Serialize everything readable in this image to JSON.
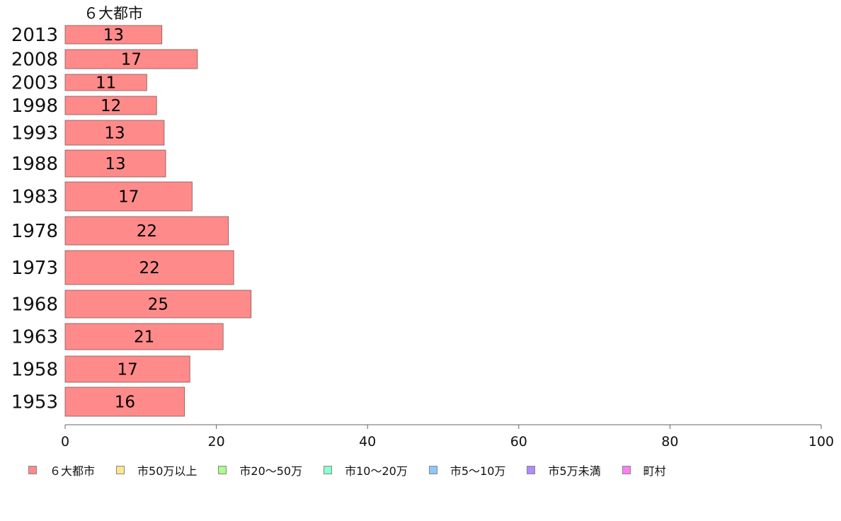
{
  "chart_data": {
    "type": "bar",
    "orientation": "horizontal",
    "series_label": "６大都市",
    "categories": [
      "2013",
      "2008",
      "2003",
      "1998",
      "1993",
      "1988",
      "1983",
      "1978",
      "1973",
      "1968",
      "1963",
      "1958",
      "1953"
    ],
    "values": [
      12.8,
      17.5,
      10.8,
      12.1,
      13.1,
      13.3,
      16.8,
      21.6,
      22.3,
      24.6,
      20.9,
      16.5,
      15.8
    ],
    "value_labels": [
      "13",
      "17",
      "11",
      "12",
      "13",
      "13",
      "17",
      "22",
      "22",
      "25",
      "21",
      "17",
      "16"
    ],
    "xlim": [
      0,
      100
    ],
    "xticks": [
      0,
      20,
      40,
      60,
      80,
      100
    ],
    "grid": false,
    "legend_position": "bottom",
    "legend": [
      {
        "label": "６大都市",
        "color": "#ff8a8a"
      },
      {
        "label": "市50万以上",
        "color": "#ffe58a"
      },
      {
        "label": "市20～50万",
        "color": "#a8ff8a"
      },
      {
        "label": "市10～20万",
        "color": "#8affd2"
      },
      {
        "label": "市5～10万",
        "color": "#8ac8ff"
      },
      {
        "label": "市5万未満",
        "color": "#b08aff"
      },
      {
        "label": "町村",
        "color": "#ff7ef0"
      }
    ],
    "bar_color": "#ff8a8a"
  }
}
